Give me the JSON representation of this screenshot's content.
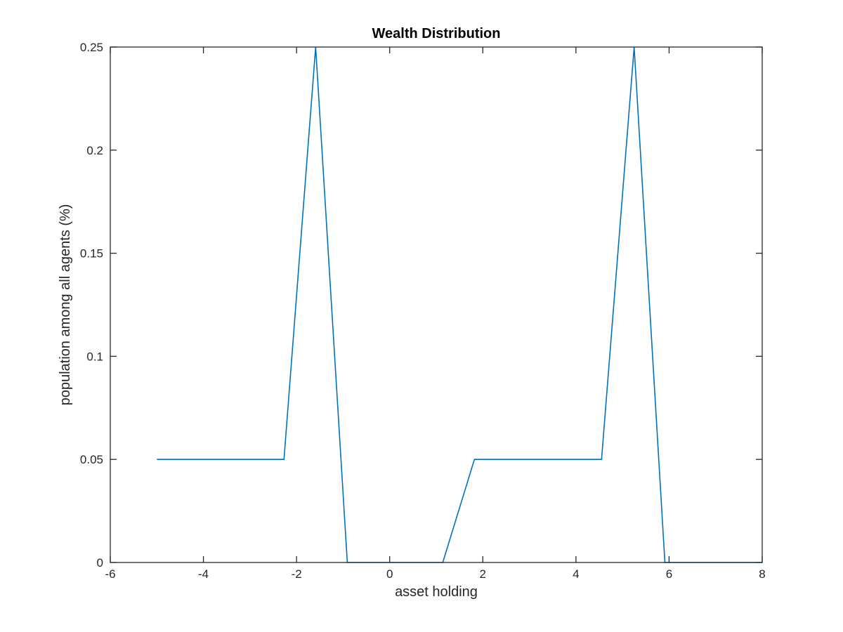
{
  "chart_data": {
    "type": "line",
    "title": "Wealth Distribution",
    "xlabel": "asset holding",
    "ylabel": "population among all agents (%)",
    "xlim": [
      -6,
      8
    ],
    "ylim": [
      0,
      0.25
    ],
    "xticks": [
      -6,
      -4,
      -2,
      0,
      2,
      4,
      6,
      8
    ],
    "xtick_labels": [
      "-6",
      "-4",
      "-2",
      "0",
      "2",
      "4",
      "6",
      "8"
    ],
    "yticks": [
      0,
      0.05,
      0.1,
      0.15,
      0.2,
      0.25
    ],
    "ytick_labels": [
      "0",
      "0.05",
      "0.1",
      "0.15",
      "0.2",
      "0.25"
    ],
    "grid": false,
    "series": [
      {
        "color": "#0072bd",
        "x": [
          -5,
          -2.27,
          -1.59,
          -0.91,
          1.14,
          1.82,
          4.55,
          5.25,
          5.91,
          8
        ],
        "y": [
          0.05,
          0.05,
          0.25,
          0,
          0,
          0.05,
          0.05,
          0.25,
          0,
          0
        ]
      }
    ]
  }
}
